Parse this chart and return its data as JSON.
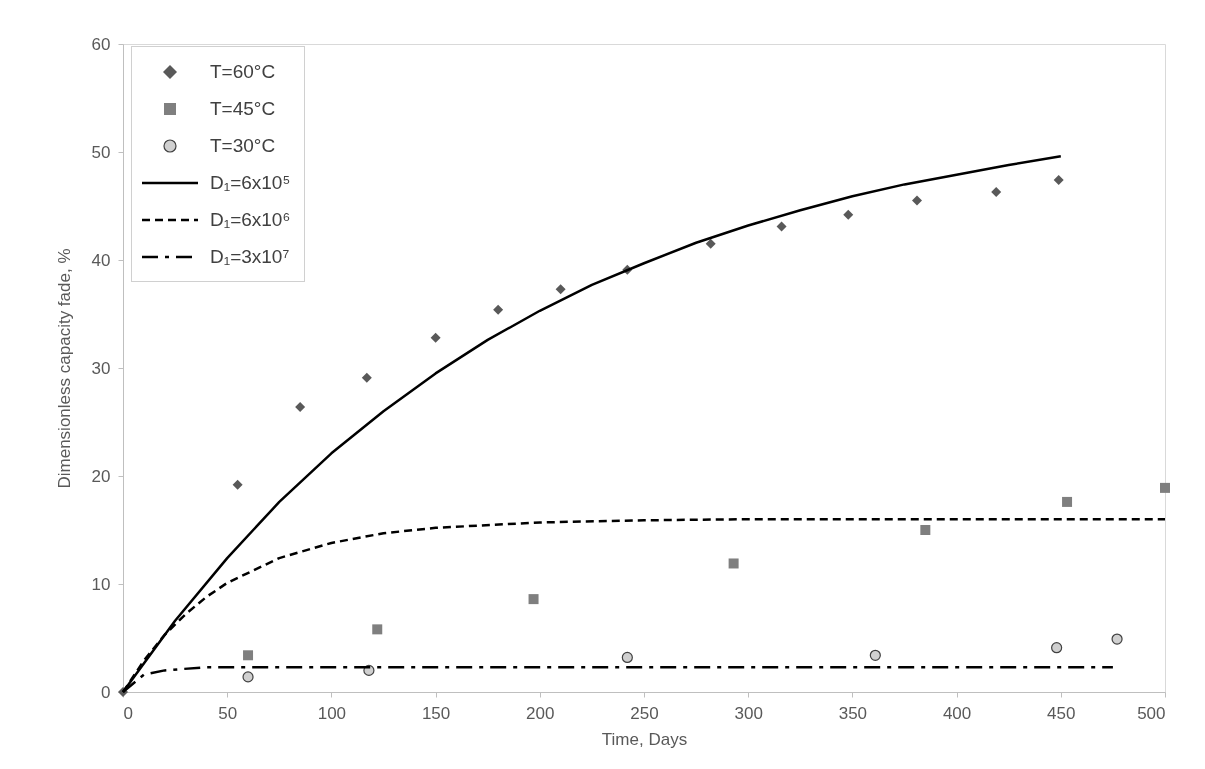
{
  "chart_data": {
    "type": "scatter",
    "xlabel": "Time, Days",
    "ylabel": "Dimensionless capacity fade, %",
    "xlim": [
      0,
      500
    ],
    "xticks": [
      0,
      50,
      100,
      150,
      200,
      250,
      300,
      350,
      400,
      450,
      500
    ],
    "ylim": [
      0,
      60
    ],
    "yticks": [
      0,
      10,
      20,
      30,
      40,
      50,
      60
    ],
    "legend": "top left",
    "series": [
      {
        "name": "T=60°C",
        "marker": "diamond",
        "color": "#595959",
        "x": [
          0,
          55,
          85,
          117,
          150,
          180,
          210,
          242,
          282,
          316,
          348,
          381,
          419,
          449
        ],
        "values": [
          0,
          19.2,
          26.4,
          29.1,
          32.8,
          35.4,
          37.3,
          39.1,
          41.5,
          43.1,
          44.2,
          45.5,
          46.3,
          47.4
        ]
      },
      {
        "name": "T=45°C",
        "marker": "square",
        "color": "#7f7f7f",
        "x": [
          60,
          122,
          197,
          293,
          385,
          453,
          500
        ],
        "values": [
          3.4,
          5.8,
          8.6,
          11.9,
          15.0,
          17.6,
          18.9
        ]
      },
      {
        "name": "T=30°C",
        "marker": "circle",
        "color": "#d0d0d0",
        "x": [
          60,
          118,
          242,
          361,
          448,
          477
        ],
        "values": [
          1.4,
          2.0,
          3.2,
          3.4,
          4.1,
          4.9
        ]
      },
      {
        "name": "D₁=6x10⁵",
        "type": "line",
        "line_style": "solid",
        "color": "#000000",
        "x": [
          0,
          25,
          50,
          75,
          100,
          125,
          150,
          175,
          200,
          225,
          250,
          275,
          300,
          325,
          350,
          375,
          400,
          425,
          450
        ],
        "values": [
          0,
          6.6,
          12.4,
          17.6,
          22.1,
          26.0,
          29.5,
          32.6,
          35.3,
          37.7,
          39.7,
          41.6,
          43.2,
          44.6,
          45.9,
          47.0,
          47.9,
          48.8,
          49.6
        ]
      },
      {
        "name": "D₁=6x10⁶",
        "type": "line",
        "line_style": "dashed",
        "color": "#000000",
        "x": [
          0,
          10,
          20,
          30,
          40,
          50,
          75,
          100,
          125,
          150,
          200,
          250,
          300,
          350,
          400,
          450,
          500
        ],
        "values": [
          0,
          2.9,
          5.3,
          7.2,
          8.8,
          10.1,
          12.4,
          13.8,
          14.7,
          15.2,
          15.7,
          15.9,
          16.0,
          16.0,
          16.0,
          16.0,
          16.0
        ]
      },
      {
        "name": "D₁=3x10⁷",
        "type": "line",
        "line_style": "dashdot",
        "color": "#000000",
        "x": [
          0,
          10,
          20,
          40,
          475
        ],
        "values": [
          0,
          1.6,
          2.0,
          2.3,
          2.3
        ]
      }
    ]
  }
}
